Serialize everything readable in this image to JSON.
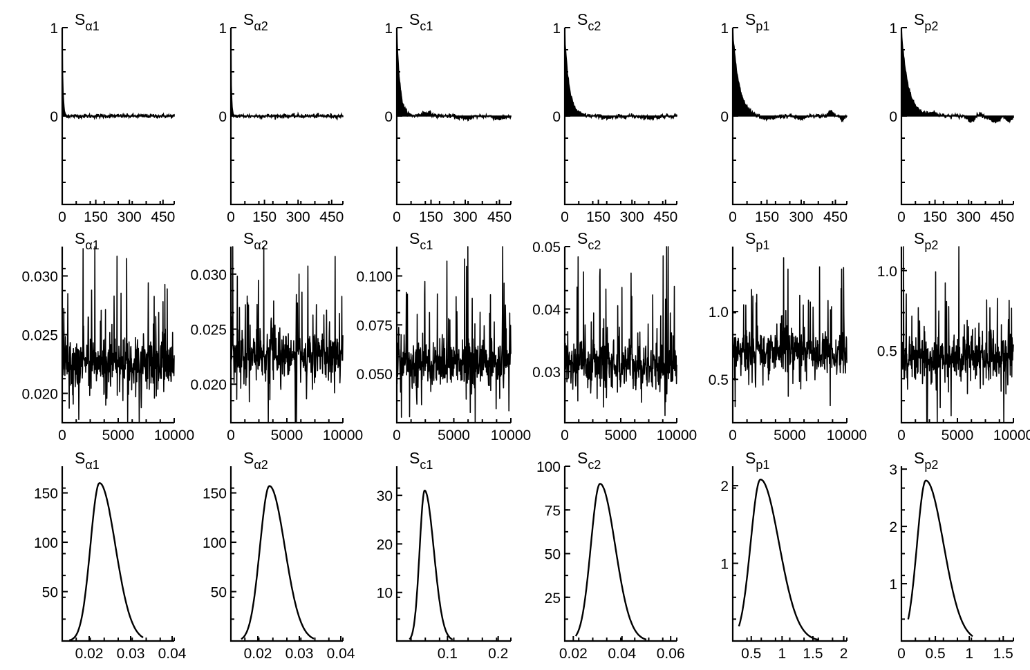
{
  "chart_data": [
    {
      "type": "bar",
      "panel": "acf",
      "title_main": "S",
      "title_sub": "α1",
      "xlim": [
        0,
        500
      ],
      "ylim": [
        -1,
        1
      ],
      "xticks": [
        0,
        150,
        300,
        450
      ],
      "xtick_labels": [
        "0",
        "150",
        "300",
        "450"
      ],
      "yticks": [
        1,
        0
      ],
      "ytick_labels": [
        "1",
        "0"
      ],
      "decay": [
        0.75,
        4
      ],
      "osc": []
    },
    {
      "type": "bar",
      "panel": "acf",
      "title_main": "S",
      "title_sub": "α2",
      "xlim": [
        0,
        500
      ],
      "ylim": [
        -1,
        1
      ],
      "xticks": [
        0,
        150,
        300,
        450
      ],
      "xtick_labels": [
        "0",
        "150",
        "300",
        "450"
      ],
      "yticks": [
        1,
        0
      ],
      "ytick_labels": [
        "1",
        "0"
      ],
      "decay": [
        0.65,
        3
      ],
      "osc": []
    },
    {
      "type": "bar",
      "panel": "acf",
      "title_main": "S",
      "title_sub": "c1",
      "xlim": [
        0,
        500
      ],
      "ylim": [
        -1,
        1
      ],
      "xticks": [
        0,
        150,
        300,
        450
      ],
      "xtick_labels": [
        "0",
        "150",
        "300",
        "450"
      ],
      "yticks": [
        1,
        0
      ],
      "ytick_labels": [
        "1",
        "0"
      ],
      "decay": [
        0.95,
        14
      ],
      "osc": [
        [
          130,
          0.04,
          60
        ],
        [
          300,
          -0.03,
          70
        ],
        [
          450,
          -0.03,
          60
        ]
      ]
    },
    {
      "type": "bar",
      "panel": "acf",
      "title_main": "S",
      "title_sub": "c2",
      "xlim": [
        0,
        500
      ],
      "ylim": [
        -1,
        1
      ],
      "xticks": [
        0,
        150,
        300,
        450
      ],
      "xtick_labels": [
        "0",
        "150",
        "300",
        "450"
      ],
      "yticks": [
        1,
        0
      ],
      "ytick_labels": [
        "1",
        "0"
      ],
      "decay": [
        0.9,
        20
      ],
      "osc": [
        [
          200,
          -0.02,
          80
        ],
        [
          380,
          -0.02,
          80
        ]
      ]
    },
    {
      "type": "bar",
      "panel": "acf",
      "title_main": "S",
      "title_sub": "p1",
      "xlim": [
        0,
        500
      ],
      "ylim": [
        -1,
        1
      ],
      "xticks": [
        0,
        150,
        300,
        450
      ],
      "xtick_labels": [
        "0",
        "150",
        "300",
        "450"
      ],
      "yticks": [
        1,
        0
      ],
      "ytick_labels": [
        "1",
        "0"
      ],
      "decay": [
        0.95,
        28
      ],
      "osc": [
        [
          150,
          -0.04,
          80
        ],
        [
          300,
          -0.03,
          60
        ],
        [
          430,
          0.06,
          25
        ],
        [
          480,
          -0.05,
          20
        ]
      ]
    },
    {
      "type": "bar",
      "panel": "acf",
      "title_main": "S",
      "title_sub": "p2",
      "xlim": [
        0,
        500
      ],
      "ylim": [
        -1,
        1
      ],
      "xticks": [
        0,
        150,
        300,
        450
      ],
      "xtick_labels": [
        "0",
        "150",
        "300",
        "450"
      ],
      "yticks": [
        1,
        0
      ],
      "ytick_labels": [
        "1",
        "0"
      ],
      "decay": [
        0.95,
        30
      ],
      "osc": [
        [
          140,
          0.03,
          60
        ],
        [
          310,
          -0.05,
          40
        ],
        [
          350,
          0.04,
          20
        ],
        [
          420,
          -0.07,
          50
        ],
        [
          480,
          -0.06,
          30
        ]
      ]
    },
    {
      "type": "line",
      "panel": "trace",
      "title_main": "S",
      "title_sub": "α1",
      "xlim": [
        0,
        10000
      ],
      "ylim": [
        0.0175,
        0.0325
      ],
      "xticks": [
        0,
        5000,
        10000
      ],
      "xtick_labels": [
        "0",
        "5000",
        "10000"
      ],
      "yticks": [
        0.03,
        0.025,
        0.02
      ],
      "ytick_labels": [
        "0.030",
        "0.025",
        "0.020"
      ],
      "center": 0.0225,
      "spread": 0.0018,
      "xmax": 10000
    },
    {
      "type": "line",
      "panel": "trace",
      "title_main": "S",
      "title_sub": "α2",
      "xlim": [
        0,
        10000
      ],
      "ylim": [
        0.0165,
        0.0325
      ],
      "xticks": [
        0,
        5000,
        10000
      ],
      "xtick_labels": [
        "0",
        "5000",
        "10000"
      ],
      "yticks": [
        0.03,
        0.025,
        0.02
      ],
      "ytick_labels": [
        "0.030",
        "0.025",
        "0.020"
      ],
      "center": 0.0225,
      "spread": 0.0018,
      "xmax": 10000
    },
    {
      "type": "line",
      "panel": "trace",
      "title_main": "S",
      "title_sub": "c1",
      "xlim": [
        0,
        10000
      ],
      "ylim": [
        0.025,
        0.115
      ],
      "xticks": [
        0,
        5000,
        10000
      ],
      "xtick_labels": [
        "0",
        "5000",
        "10000"
      ],
      "yticks": [
        0.1,
        0.075,
        0.05
      ],
      "ytick_labels": [
        "0.100",
        "0.075",
        "0.050"
      ],
      "center": 0.055,
      "spread": 0.01,
      "xmax": 10000
    },
    {
      "type": "line",
      "panel": "trace",
      "title_main": "S",
      "title_sub": "c2",
      "xlim": [
        0,
        10000
      ],
      "ylim": [
        0.0218,
        0.05
      ],
      "xticks": [
        0,
        5000,
        10000
      ],
      "xtick_labels": [
        "0",
        "5000",
        "10000"
      ],
      "yticks": [
        0.05,
        0.04,
        0.03
      ],
      "ytick_labels": [
        "0.05",
        "0.04",
        "0.03"
      ],
      "center": 0.031,
      "spread": 0.0035,
      "xmax": 10000
    },
    {
      "type": "line",
      "panel": "trace",
      "title_main": "S",
      "title_sub": "p1",
      "xlim": [
        0,
        10000
      ],
      "ylim": [
        0.18,
        1.48
      ],
      "xticks": [
        0,
        5000,
        10000
      ],
      "xtick_labels": [
        "0",
        "5000",
        "10000"
      ],
      "yticks": [
        1.0,
        0.5
      ],
      "ytick_labels": [
        "1.0",
        "0.5"
      ],
      "center": 0.7,
      "spread": 0.13,
      "xmax": 10000
    },
    {
      "type": "line",
      "panel": "trace",
      "title_main": "S",
      "title_sub": "p2",
      "xlim": [
        0,
        10000
      ],
      "ylim": [
        0.05,
        1.15
      ],
      "xticks": [
        0,
        5000,
        10000
      ],
      "xtick_labels": [
        "0",
        "5000",
        "10000"
      ],
      "yticks": [
        1.0,
        0.5
      ],
      "ytick_labels": [
        "1.0",
        "0.5"
      ],
      "center": 0.45,
      "spread": 0.12,
      "xmax": 10000
    },
    {
      "type": "line",
      "panel": "density",
      "title_main": "S",
      "title_sub": "α1",
      "xlim": [
        0.0135,
        0.0405
      ],
      "ylim": [
        0,
        177
      ],
      "xticks": [
        0.02,
        0.03,
        0.04
      ],
      "xtick_labels": [
        "0.02",
        "0.03",
        "0.04"
      ],
      "yticks": [
        150,
        100,
        50
      ],
      "ytick_labels": [
        "150",
        "100",
        "50"
      ],
      "mode": 0.0225,
      "peak": 160,
      "sl": 0.0022,
      "sr": 0.0038,
      "xmin": 0.0152,
      "xmax": 0.033
    },
    {
      "type": "line",
      "panel": "density",
      "title_main": "S",
      "title_sub": "α2",
      "xlim": [
        0.0135,
        0.0405
      ],
      "ylim": [
        0,
        177
      ],
      "xticks": [
        0.02,
        0.03,
        0.04
      ],
      "xtick_labels": [
        "0.02",
        "0.03",
        "0.04"
      ],
      "yticks": [
        150,
        100,
        50
      ],
      "ytick_labels": [
        "150",
        "100",
        "50"
      ],
      "mode": 0.0228,
      "peak": 157,
      "sl": 0.0023,
      "sr": 0.0037,
      "xmin": 0.016,
      "xmax": 0.0335
    },
    {
      "type": "line",
      "panel": "density",
      "title_main": "S",
      "title_sub": "c1",
      "xlim": [
        0.0,
        0.225
      ],
      "ylim": [
        0,
        36
      ],
      "xticks": [
        0.1,
        0.2
      ],
      "xtick_labels": [
        "0.1",
        "0.2"
      ],
      "yticks": [
        30,
        20,
        10
      ],
      "ytick_labels": [
        "30",
        "20",
        "10"
      ],
      "mode": 0.055,
      "peak": 31,
      "sl": 0.01,
      "sr": 0.018,
      "xmin": 0.025,
      "xmax": 0.11
    },
    {
      "type": "line",
      "panel": "density",
      "title_main": "S",
      "title_sub": "c2",
      "xlim": [
        0.0165,
        0.0625
      ],
      "ylim": [
        0,
        100
      ],
      "xticks": [
        0.02,
        0.04,
        0.06
      ],
      "xtick_labels": [
        "0.02",
        "0.04",
        "0.06"
      ],
      "yticks": [
        100,
        75,
        50,
        25
      ],
      "ytick_labels": [
        "100",
        "75",
        "50",
        "25"
      ],
      "mode": 0.031,
      "peak": 90,
      "sl": 0.0038,
      "sr": 0.0062,
      "xmin": 0.021,
      "xmax": 0.05
    },
    {
      "type": "line",
      "panel": "density",
      "title_main": "S",
      "title_sub": "p1",
      "xlim": [
        0.2,
        2.05
      ],
      "ylim": [
        0,
        2.25
      ],
      "xticks": [
        0.5,
        1,
        1.5,
        2
      ],
      "xtick_labels": [
        "0.5",
        "1",
        "1.5",
        "2"
      ],
      "yticks": [
        2,
        1
      ],
      "ytick_labels": [
        "2",
        "1"
      ],
      "mode": 0.65,
      "peak": 2.08,
      "sl": 0.16,
      "sr": 0.3,
      "xmin": 0.3,
      "xmax": 1.6
    },
    {
      "type": "line",
      "panel": "density",
      "title_main": "S",
      "title_sub": "p2",
      "xlim": [
        0.0,
        1.65
      ],
      "ylim": [
        0,
        3.05
      ],
      "xticks": [
        0,
        0.5,
        1,
        1.5
      ],
      "xtick_labels": [
        "0",
        "0.5",
        "1",
        "1.5"
      ],
      "yticks": [
        3,
        2,
        1
      ],
      "ytick_labels": [
        "3",
        "2",
        "1"
      ],
      "mode": 0.36,
      "peak": 2.8,
      "sl": 0.13,
      "sr": 0.26,
      "xmin": 0.1,
      "xmax": 1.05
    }
  ]
}
